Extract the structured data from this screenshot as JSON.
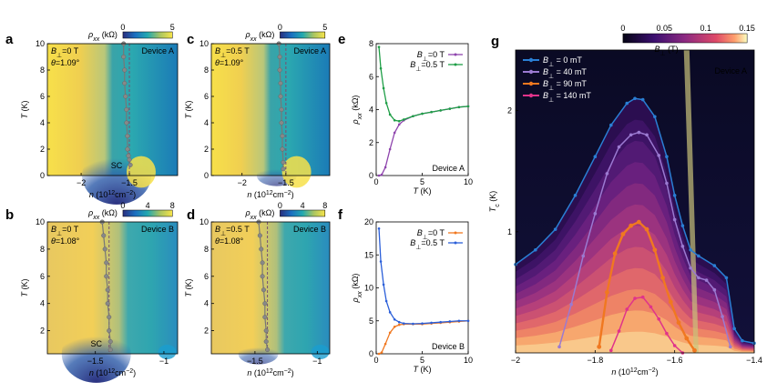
{
  "chart_data": [
    {
      "panel": "a",
      "type": "heatmap",
      "title": "",
      "device": "Device A",
      "colorbar": {
        "label": "ρxx (kΩ)",
        "min": 0,
        "max": 5,
        "ticks": [
          "0",
          "5"
        ]
      },
      "xlabel": "n (10^12 cm^-2)",
      "ylabel": "T (K)",
      "xlim": [
        -2.35,
        -1.0
      ],
      "ylim": [
        0,
        10
      ],
      "xticks": [
        "-2",
        "-1.5"
      ],
      "yticks": [
        "0",
        "2",
        "4",
        "6",
        "8",
        "10"
      ],
      "annotations": [
        "B⊥=0 T",
        "θ=1.09°",
        "SC"
      ],
      "boundary_x": -1.5,
      "tc_trace": [
        [
          -1.56,
          10
        ],
        [
          -1.56,
          9
        ],
        [
          -1.55,
          8
        ],
        [
          -1.55,
          7
        ],
        [
          -1.54,
          6
        ],
        [
          -1.53,
          5
        ],
        [
          -1.53,
          4
        ],
        [
          -1.52,
          3
        ],
        [
          -1.52,
          2
        ],
        [
          -1.51,
          1.5
        ],
        [
          -1.5,
          1.2
        ],
        [
          -1.49,
          0.8
        ]
      ]
    },
    {
      "panel": "b",
      "type": "heatmap",
      "device": "Device B",
      "colorbar": {
        "label": "ρxx (kΩ)",
        "min": 0,
        "max": 8,
        "ticks": [
          "0",
          "4",
          "8"
        ]
      },
      "xlabel": "n (10^12 cm^-2)",
      "ylabel": "T (K)",
      "xlim": [
        -1.85,
        -0.9
      ],
      "ylim": [
        0.3,
        10
      ],
      "xticks": [
        "-1.5",
        "-1"
      ],
      "yticks": [
        "2",
        "4",
        "6",
        "8",
        "10"
      ],
      "annotations": [
        "B⊥=0 T",
        "θ=1.08°",
        "SC"
      ],
      "boundary_x": -1.4,
      "tc_trace": [
        [
          -1.45,
          10
        ],
        [
          -1.44,
          9
        ],
        [
          -1.43,
          8
        ],
        [
          -1.42,
          7
        ],
        [
          -1.42,
          6
        ],
        [
          -1.41,
          5
        ],
        [
          -1.41,
          4
        ],
        [
          -1.4,
          3
        ],
        [
          -1.4,
          2
        ],
        [
          -1.39,
          1.2
        ],
        [
          -1.39,
          0.6
        ]
      ]
    },
    {
      "panel": "c",
      "type": "heatmap",
      "device": "Device A",
      "colorbar": {
        "label": "ρxx (kΩ)",
        "min": 0,
        "max": 5,
        "ticks": [
          "0",
          "5"
        ]
      },
      "xlabel": "n (10^12 cm^-2)",
      "ylabel": "T (K)",
      "xlim": [
        -2.35,
        -1.0
      ],
      "ylim": [
        0,
        10
      ],
      "xticks": [
        "-2",
        "-1.5"
      ],
      "yticks": [
        "0",
        "2",
        "4",
        "6",
        "8",
        "10"
      ],
      "annotations": [
        "B⊥=0.5 T",
        "θ=1.09°"
      ],
      "boundary_x": -1.5,
      "tc_trace": [
        [
          -1.58,
          10
        ],
        [
          -1.57,
          9
        ],
        [
          -1.57,
          8
        ],
        [
          -1.56,
          7
        ],
        [
          -1.56,
          6
        ],
        [
          -1.55,
          5
        ],
        [
          -1.55,
          4
        ],
        [
          -1.54,
          3
        ],
        [
          -1.54,
          2
        ],
        [
          -1.53,
          1
        ],
        [
          -1.53,
          0.5
        ]
      ]
    },
    {
      "panel": "d",
      "type": "heatmap",
      "device": "Device B",
      "colorbar": {
        "label": "ρxx (kΩ)",
        "min": 0,
        "max": 8,
        "ticks": [
          "0",
          "4",
          "8"
        ]
      },
      "xlabel": "n (10^12 cm^-2)",
      "ylabel": "T (K)",
      "xlim": [
        -1.85,
        -0.9
      ],
      "ylim": [
        0.3,
        10
      ],
      "xticks": [
        "-1.5",
        "-1"
      ],
      "yticks": [
        "2",
        "4",
        "6",
        "8",
        "10"
      ],
      "annotations": [
        "B⊥=0.5 T",
        "θ=1.08°"
      ],
      "boundary_x": -1.4,
      "tc_trace": [
        [
          -1.47,
          10
        ],
        [
          -1.46,
          9
        ],
        [
          -1.45,
          8
        ],
        [
          -1.44,
          7
        ],
        [
          -1.44,
          6
        ],
        [
          -1.43,
          5
        ],
        [
          -1.42,
          4
        ],
        [
          -1.42,
          3
        ],
        [
          -1.41,
          2
        ],
        [
          -1.41,
          1.2
        ],
        [
          -1.4,
          0.6
        ]
      ]
    },
    {
      "panel": "e",
      "type": "line",
      "device": "Device A",
      "xlabel": "T (K)",
      "ylabel": "ρxx (kΩ)",
      "xlim": [
        0,
        10
      ],
      "ylim": [
        0,
        8
      ],
      "xticks": [
        "0",
        "5",
        "10"
      ],
      "yticks": [
        "0",
        "2",
        "4",
        "6",
        "8"
      ],
      "series": [
        {
          "name": "B⊥=0 T",
          "color": "#8e44ad",
          "x": [
            0.3,
            0.6,
            1,
            1.5,
            2,
            2.5,
            3,
            4,
            5,
            6,
            7,
            8,
            9,
            10
          ],
          "y": [
            0,
            0.05,
            0.5,
            1.6,
            2.6,
            3.1,
            3.35,
            3.6,
            3.75,
            3.85,
            3.95,
            4.05,
            4.15,
            4.2
          ]
        },
        {
          "name": "B⊥=0.5 T",
          "color": "#1e9e46",
          "x": [
            0.3,
            0.5,
            0.8,
            1.1,
            1.5,
            2,
            2.5,
            3,
            4,
            5,
            6,
            7,
            8,
            9,
            10
          ],
          "y": [
            7.8,
            6.5,
            5.3,
            4.4,
            3.7,
            3.35,
            3.3,
            3.4,
            3.6,
            3.75,
            3.85,
            3.95,
            4.05,
            4.15,
            4.2
          ]
        }
      ]
    },
    {
      "panel": "f",
      "type": "line",
      "device": "Device B",
      "xlabel": "T (K)",
      "ylabel": "ρxx (kΩ)",
      "xlim": [
        0,
        10
      ],
      "ylim": [
        0,
        20
      ],
      "xticks": [
        "0",
        "5",
        "10"
      ],
      "yticks": [
        "0",
        "5",
        "10",
        "15",
        "20"
      ],
      "series": [
        {
          "name": "B⊥=0 T",
          "color": "#f07820",
          "x": [
            0.3,
            0.6,
            1,
            1.5,
            2,
            2.5,
            3,
            4,
            5,
            6,
            7,
            8,
            9,
            10
          ],
          "y": [
            0,
            0.2,
            1.5,
            3.2,
            4.1,
            4.4,
            4.5,
            4.5,
            4.5,
            4.6,
            4.7,
            4.8,
            4.9,
            5.0
          ]
        },
        {
          "name": "B⊥=0.5 T",
          "color": "#2b5fd9",
          "x": [
            0.3,
            0.5,
            0.8,
            1.1,
            1.5,
            2,
            2.5,
            3,
            4,
            5,
            6,
            7,
            8,
            9,
            10
          ],
          "y": [
            19,
            14,
            10.5,
            8,
            6.3,
            5.2,
            4.8,
            4.6,
            4.55,
            4.6,
            4.7,
            4.8,
            4.9,
            5.0,
            5.0
          ]
        }
      ]
    },
    {
      "panel": "g",
      "type": "line",
      "device": "Device A",
      "colorbar": {
        "label": "B⊥ (T)",
        "min": 0,
        "max": 0.15,
        "ticks": [
          "0",
          "0.05",
          "0.1",
          "0.15"
        ]
      },
      "xlabel": "n (10^12 cm^-2)",
      "ylabel": "Tc (K)",
      "xlim": [
        -2.0,
        -1.4
      ],
      "ylim": [
        0,
        2.5
      ],
      "xticks": [
        "-2",
        "-1.8",
        "-1.6",
        "-1.4"
      ],
      "yticks": [
        "1",
        "2"
      ],
      "series": [
        {
          "name": "B⊥ = 0 mT",
          "color": "#2a7fd4",
          "x": [
            -2.0,
            -1.95,
            -1.9,
            -1.85,
            -1.8,
            -1.76,
            -1.72,
            -1.7,
            -1.68,
            -1.65,
            -1.62,
            -1.6,
            -1.58,
            -1.56,
            -1.54,
            -1.5,
            -1.47,
            -1.45,
            -1.43,
            -1.4
          ],
          "y": [
            0.73,
            0.85,
            1.02,
            1.3,
            1.62,
            1.88,
            2.06,
            2.1,
            2.09,
            1.95,
            1.62,
            1.3,
            1.05,
            0.85,
            0.8,
            0.72,
            0.62,
            0.2,
            0.1,
            0.08
          ]
        },
        {
          "name": "B⊥ = 40 mT",
          "color": "#9b7ad1",
          "x": [
            -1.89,
            -1.86,
            -1.83,
            -1.8,
            -1.77,
            -1.74,
            -1.71,
            -1.69,
            -1.67,
            -1.64,
            -1.62,
            -1.6,
            -1.58,
            -1.56,
            -1.54,
            -1.52,
            -1.5,
            -1.48,
            -1.46
          ],
          "y": [
            0.05,
            0.4,
            0.8,
            1.15,
            1.48,
            1.7,
            1.8,
            1.82,
            1.8,
            1.63,
            1.4,
            1.1,
            0.88,
            0.7,
            0.62,
            0.6,
            0.52,
            0.3,
            0.05
          ]
        },
        {
          "name": "B⊥ = 90 mT",
          "color": "#f07820",
          "x": [
            -1.79,
            -1.77,
            -1.75,
            -1.73,
            -1.71,
            -1.69,
            -1.67,
            -1.65,
            -1.63,
            -1.61,
            -1.59,
            -1.57,
            -1.55
          ],
          "y": [
            0.05,
            0.5,
            0.82,
            0.98,
            1.05,
            1.08,
            1.02,
            0.85,
            0.62,
            0.42,
            0.25,
            0.12,
            0.02
          ]
        },
        {
          "name": "B⊥ = 140 mT",
          "color": "#e0338a",
          "x": [
            -1.76,
            -1.74,
            -1.72,
            -1.7,
            -1.68,
            -1.66,
            -1.64,
            -1.62,
            -1.6,
            -1.58
          ],
          "y": [
            0.02,
            0.18,
            0.36,
            0.45,
            0.46,
            0.38,
            0.28,
            0.16,
            0.06,
            0.0
          ]
        }
      ]
    }
  ]
}
